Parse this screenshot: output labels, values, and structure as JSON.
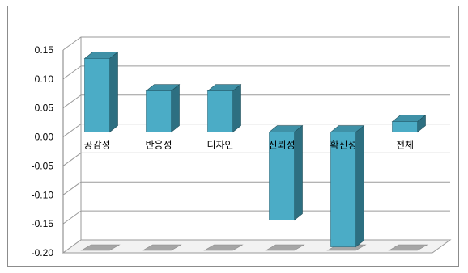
{
  "chart_data": {
    "type": "bar",
    "title": "",
    "xlabel": "",
    "ylabel": "",
    "categories": [
      "공감성",
      "반응성",
      "디자인",
      "신뢰성",
      "확신성",
      "전체"
    ],
    "values": [
      0.127,
      0.071,
      0.071,
      -0.152,
      -0.198,
      0.018
    ],
    "ylim": [
      -0.2,
      0.15
    ],
    "y_ticks": [
      "0.15",
      "0.10",
      "0.05",
      "0.00",
      "-0.05",
      "-0.10",
      "-0.15",
      "-0.20"
    ],
    "grid": true,
    "style": "3d-column",
    "colors": {
      "bar_front": "#4bacc6",
      "bar_side": "#2d6f81",
      "bar_top": "#3f91a7",
      "gridline": "#9a9a9a",
      "floor": "#a6a6a6"
    }
  }
}
